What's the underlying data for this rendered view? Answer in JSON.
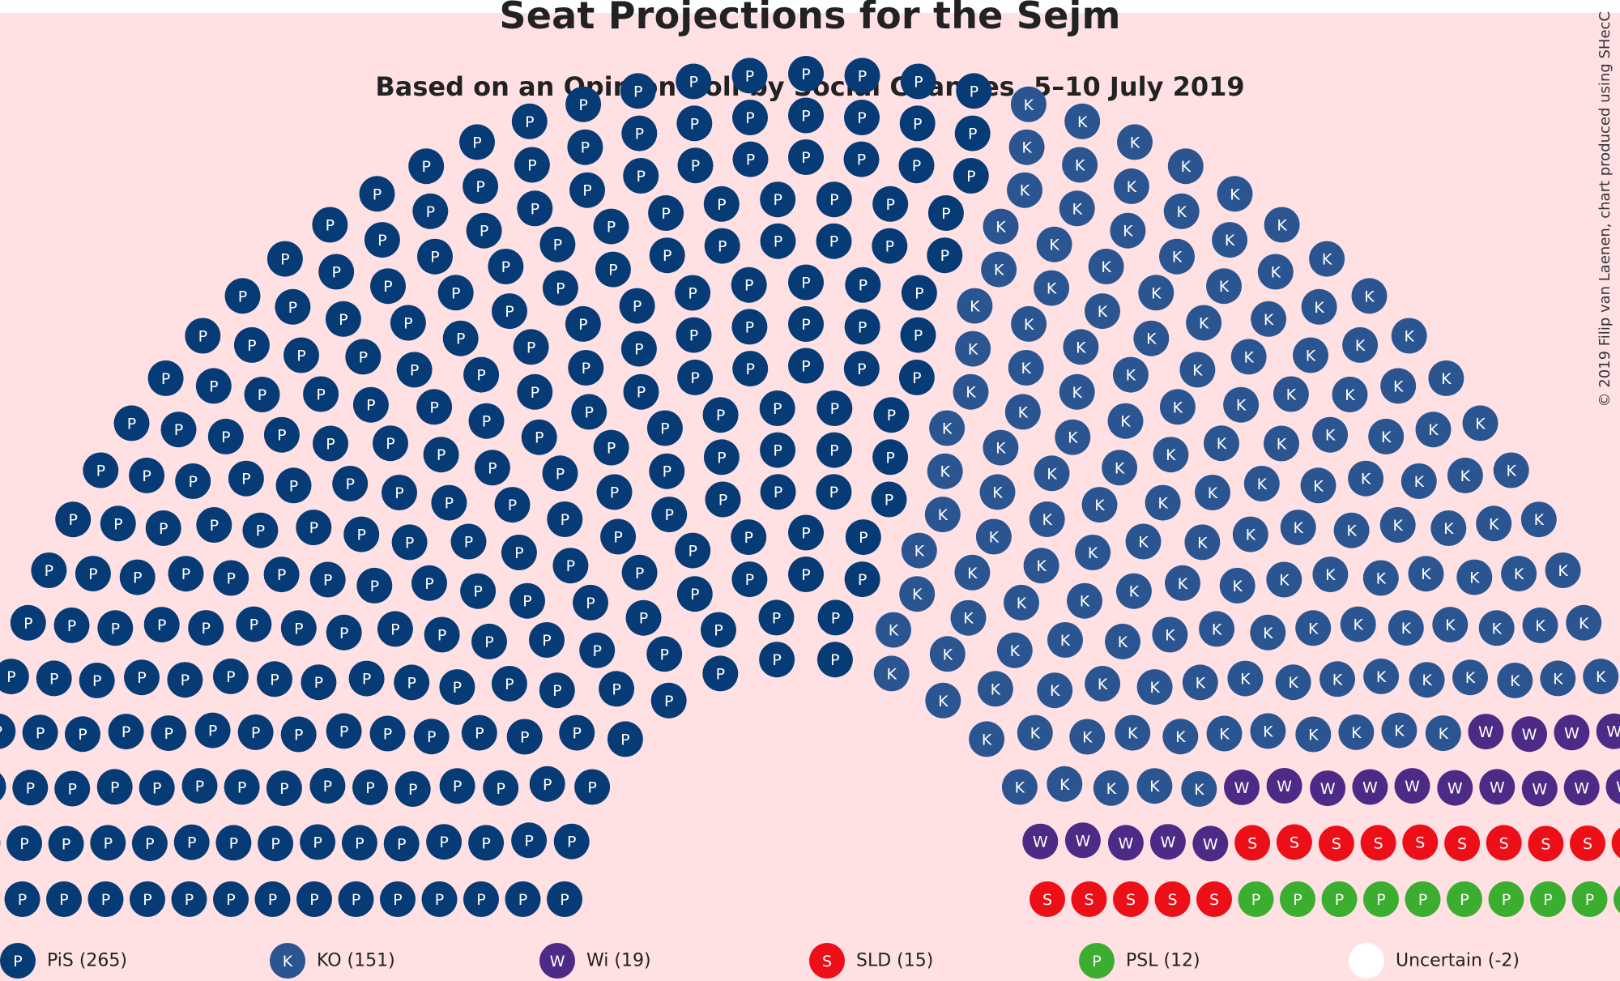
{
  "title": "Seat Projections for the Sejm",
  "subtitle": "Based on an Opinion Poll by Social Changes, 5–10 July 2019",
  "credit": "© 2019 Filip van Laenen, chart produced using SHecC",
  "chart_data": {
    "type": "parliament",
    "total_seats": 460,
    "series": [
      {
        "name": "PiS",
        "short": "P",
        "seats": 265,
        "color": "#073b76",
        "legend": "PiS (265)"
      },
      {
        "name": "KO",
        "short": "K",
        "seats": 151,
        "color": "#2a5591",
        "legend": "KO (151)"
      },
      {
        "name": "Wi",
        "short": "W",
        "seats": 19,
        "color": "#4d2a86",
        "legend": "Wi (19)"
      },
      {
        "name": "SLD",
        "short": "S",
        "seats": 15,
        "color": "#ec0f18",
        "legend": "SLD (15)"
      },
      {
        "name": "PSL",
        "short": "P",
        "seats": 12,
        "color": "#3bad2f",
        "legend": "PSL (12)"
      },
      {
        "name": "Uncertain",
        "short": "",
        "seats": -2,
        "color": "#ffffff",
        "legend": "Uncertain (-2)"
      }
    ]
  }
}
